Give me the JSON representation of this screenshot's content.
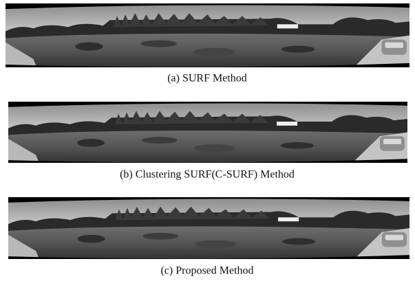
{
  "figure": {
    "panels": [
      {
        "caption": "(a) SURF Method"
      },
      {
        "caption": "(b) Clustering SURF(C-SURF) Method"
      },
      {
        "caption": "(c) Proposed Method"
      }
    ]
  }
}
